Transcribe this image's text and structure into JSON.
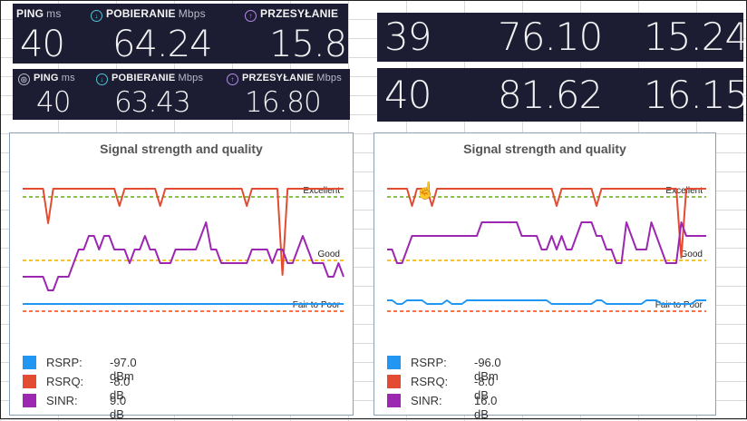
{
  "speedtest_top_left": {
    "ping_label": "PING",
    "ping_unit": "ms",
    "download_label": "POBIERANIE",
    "download_unit": "Mbps",
    "upload_label": "PRZESYŁANIE",
    "ping": "40",
    "download": "64.24",
    "upload": "15.84"
  },
  "speedtest_bottom_left": {
    "ping_label": "PING",
    "ping_unit": "ms",
    "download_label": "POBIERANIE",
    "download_unit": "Mbps",
    "upload_label": "PRZESYŁANIE",
    "upload_unit": "Mbps",
    "ping": "40",
    "download": "63.43",
    "upload": "16.80"
  },
  "speedtest_top_right": {
    "ping": "39",
    "download": "76.10",
    "upload": "15.24"
  },
  "speedtest_bottom_right": {
    "ping": "40",
    "download": "81.62",
    "upload": "16.15"
  },
  "colors": {
    "rsrp": "#2196f3",
    "rsrq": "#e34b32",
    "sinr": "#9c27b0",
    "excellent": "#8bc34a",
    "good": "#f4c430",
    "fair": "#ff7043",
    "panel_bg": "#1c1d33"
  },
  "chart_left": {
    "title": "Signal strength and quality",
    "thresholds": {
      "excellent": "Excellent",
      "good": "Good",
      "fair": "Fair to Poor"
    },
    "legend": [
      {
        "name": "RSRP:",
        "value": "-97.0 dBm",
        "color": "#2196f3"
      },
      {
        "name": "RSRQ:",
        "value": "-8.0 dB",
        "color": "#e34b32"
      },
      {
        "name": "SINR:",
        "value": "9.0 dB",
        "color": "#9c27b0"
      }
    ]
  },
  "chart_right": {
    "title": "Signal strength and quality",
    "thresholds": {
      "excellent": "Excellent",
      "good": "Good",
      "fair": "Fair to Poor"
    },
    "legend": [
      {
        "name": "RSRP:",
        "value": "-96.0 dBm",
        "color": "#2196f3"
      },
      {
        "name": "RSRQ:",
        "value": "-8.0 dB",
        "color": "#e34b32"
      },
      {
        "name": "SINR:",
        "value": "16.0 dB",
        "color": "#9c27b0"
      }
    ]
  },
  "chart_data": [
    {
      "type": "line",
      "title": "Signal strength and quality",
      "series": [
        {
          "name": "RSRQ",
          "values": [
            9,
            9,
            9,
            9,
            9,
            7,
            9,
            9,
            9,
            9,
            9,
            9,
            9,
            9,
            9,
            9,
            9,
            9,
            9,
            8,
            9,
            9,
            9,
            9,
            9,
            9,
            9,
            8,
            9,
            9,
            9,
            9,
            9,
            9,
            9,
            9,
            9,
            9,
            9,
            9,
            9,
            9,
            9,
            9,
            8,
            9,
            9,
            9,
            9,
            9,
            9,
            4,
            9,
            9,
            9,
            9,
            9,
            9,
            9,
            9,
            9,
            9,
            9,
            9
          ]
        },
        {
          "name": "SINR",
          "values": [
            2,
            2,
            2,
            2,
            2,
            1,
            1,
            2,
            2,
            2,
            3,
            4,
            4,
            5,
            5,
            4,
            5,
            5,
            4,
            4,
            4,
            3,
            4,
            4,
            5,
            4,
            4,
            3,
            3,
            3,
            4,
            4,
            4,
            4,
            4,
            5,
            6,
            4,
            4,
            3,
            3,
            3,
            3,
            3,
            3,
            4,
            4,
            4,
            4,
            3,
            4,
            4,
            3,
            3,
            4,
            5,
            4,
            3,
            3,
            3,
            2,
            2,
            3,
            2
          ]
        },
        {
          "name": "RSRP",
          "values": [
            1,
            1,
            1,
            1,
            1,
            1,
            1,
            1,
            1,
            1,
            1,
            1,
            1,
            1,
            1,
            1,
            1,
            1,
            1,
            1,
            1,
            1,
            1,
            1,
            1,
            1,
            1,
            1,
            1,
            1,
            1,
            1,
            1,
            1,
            1,
            1,
            1,
            1,
            1,
            1,
            1,
            1,
            1,
            1,
            1,
            1,
            1,
            1,
            1,
            1,
            1,
            1,
            1,
            1,
            1,
            1,
            1,
            1,
            1,
            1,
            1,
            1,
            1,
            1
          ]
        }
      ]
    },
    {
      "type": "line",
      "title": "Signal strength and quality",
      "series": [
        {
          "name": "RSRQ",
          "values": [
            9,
            9,
            9,
            9,
            9,
            8,
            9,
            9,
            9,
            8,
            9,
            9,
            9,
            9,
            9,
            9,
            9,
            9,
            9,
            9,
            9,
            9,
            9,
            9,
            9,
            9,
            9,
            9,
            9,
            9,
            9,
            9,
            9,
            9,
            8,
            9,
            9,
            9,
            9,
            9,
            9,
            9,
            8,
            9,
            9,
            9,
            9,
            9,
            9,
            9,
            9,
            9,
            9,
            9,
            9,
            9,
            9,
            9,
            9,
            5,
            9,
            9,
            9,
            9,
            9
          ]
        },
        {
          "name": "SINR",
          "values": [
            4,
            4,
            3,
            3,
            4,
            5,
            5,
            5,
            5,
            5,
            5,
            5,
            5,
            5,
            5,
            5,
            5,
            5,
            5,
            6,
            6,
            6,
            6,
            6,
            6,
            6,
            6,
            5,
            5,
            5,
            5,
            4,
            4,
            5,
            4,
            5,
            4,
            4,
            5,
            6,
            6,
            6,
            5,
            5,
            4,
            4,
            3,
            3,
            6,
            5,
            4,
            4,
            4,
            6,
            5,
            4,
            3,
            3,
            3,
            6,
            5,
            5,
            5,
            5,
            5
          ]
        },
        {
          "name": "RSRP",
          "values": [
            2,
            2,
            1,
            1,
            2,
            2,
            2,
            2,
            1,
            1,
            1,
            1,
            2,
            1,
            1,
            1,
            2,
            2,
            2,
            2,
            2,
            2,
            2,
            2,
            2,
            2,
            2,
            2,
            2,
            2,
            2,
            2,
            2,
            1,
            1,
            1,
            1,
            1,
            1,
            1,
            1,
            1,
            2,
            2,
            1,
            1,
            1,
            1,
            1,
            1,
            1,
            1,
            2,
            2,
            2,
            1,
            1,
            1,
            1,
            1,
            1,
            1,
            2,
            2,
            2
          ]
        }
      ]
    }
  ]
}
